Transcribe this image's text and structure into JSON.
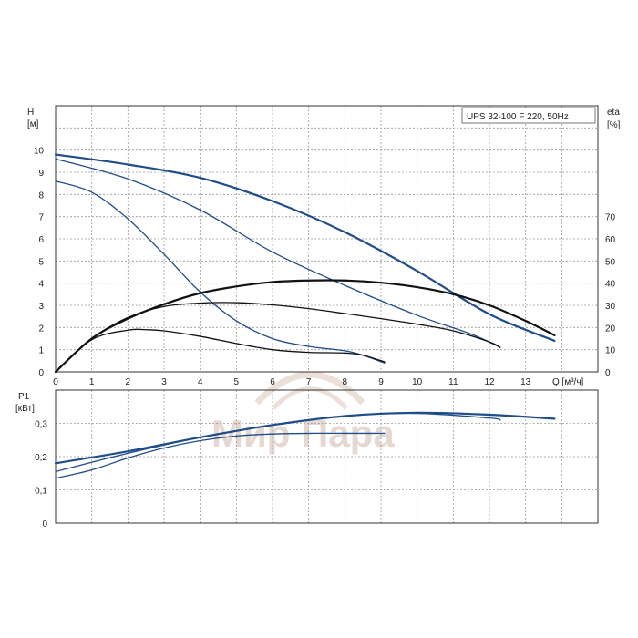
{
  "title_box": "UPS 32-100 F 220, 50Hz",
  "watermark": "Мир Пара",
  "colors": {
    "head": "#1f4d8a",
    "efficiency": "#111111",
    "power": "#1f4d8a",
    "grid": "#9a9a9a"
  },
  "chart_data": [
    {
      "type": "line",
      "title": "UPS 32-100 F 220, 50Hz",
      "xlabel": "Q [м³/ч]",
      "ylabel": "H [м]",
      "ylabel_line1": "H",
      "ylabel_line2": "[м]",
      "y2label": "eta [%]",
      "y2label_line1": "eta",
      "y2label_line2": "[%]",
      "xlim": [
        0,
        15
      ],
      "ylim": [
        0,
        12
      ],
      "y2lim": [
        0,
        120
      ],
      "x_ticks": [
        0,
        1,
        2,
        3,
        4,
        5,
        6,
        7,
        8,
        9,
        10,
        11,
        12,
        13
      ],
      "y_ticks": [
        0,
        1,
        2,
        3,
        4,
        5,
        6,
        7,
        8,
        9,
        10
      ],
      "y2_ticks": [
        0,
        10,
        20,
        30,
        40,
        50,
        60,
        70
      ],
      "grid": true,
      "series": [
        {
          "kind": "head",
          "width": 2.2,
          "x": [
            0,
            2,
            4,
            6,
            8,
            10,
            12,
            13.8
          ],
          "y": [
            9.8,
            9.35,
            8.75,
            7.7,
            6.3,
            4.55,
            2.6,
            1.4
          ]
        },
        {
          "kind": "head",
          "width": 1.3,
          "x": [
            0,
            2,
            4,
            6,
            8,
            10,
            11.5,
            12.3
          ],
          "y": [
            9.6,
            8.7,
            7.3,
            5.4,
            3.9,
            2.55,
            1.7,
            1.1
          ]
        },
        {
          "kind": "head",
          "width": 1.3,
          "x": [
            0,
            1,
            2,
            3,
            4,
            5,
            6,
            7,
            8,
            8.5,
            9.1
          ],
          "y": [
            8.6,
            8.1,
            6.9,
            5.3,
            3.6,
            2.3,
            1.5,
            1.15,
            0.95,
            0.75,
            0.4
          ]
        },
        {
          "kind": "efficiency",
          "width": 2.2,
          "x": [
            0,
            1,
            2,
            3,
            4,
            5,
            6,
            7,
            8,
            9,
            10,
            11,
            12,
            13,
            13.8
          ],
          "y": [
            0,
            15,
            24,
            30.5,
            35.5,
            38.5,
            40.5,
            41.2,
            41.2,
            40.2,
            38.2,
            35.0,
            30.0,
            23.0,
            16.5
          ]
        },
        {
          "kind": "efficiency",
          "width": 1.3,
          "x": [
            0,
            1,
            2,
            3,
            4,
            5,
            6,
            7,
            8,
            9,
            10,
            11,
            12,
            12.3
          ],
          "y": [
            0,
            15,
            24.5,
            29.5,
            31.0,
            31.2,
            30.2,
            28.5,
            26.3,
            24.0,
            21.5,
            18.5,
            13.5,
            11.0
          ]
        },
        {
          "kind": "efficiency",
          "width": 1.3,
          "x": [
            0,
            1,
            2,
            2.5,
            3,
            4,
            5,
            6,
            7,
            8,
            8.5,
            9.1
          ],
          "y": [
            0,
            14.5,
            18.8,
            19.0,
            18.5,
            16.0,
            12.8,
            10.0,
            8.8,
            8.5,
            7.5,
            4.5
          ]
        }
      ]
    },
    {
      "type": "line",
      "ylabel": "P1 [кВт]",
      "ylabel_line1": "P1",
      "ylabel_line2": "[кВт]",
      "xlim": [
        0,
        15
      ],
      "ylim": [
        0,
        0.4
      ],
      "y_ticks": [
        "0",
        "0,1",
        "0,2",
        "0,3"
      ],
      "y_tick_values": [
        0,
        0.1,
        0.2,
        0.3
      ],
      "grid": true,
      "series": [
        {
          "kind": "power",
          "width": 2.2,
          "x": [
            0,
            2,
            4,
            6,
            8,
            10,
            12,
            13.8
          ],
          "y": [
            0.18,
            0.216,
            0.258,
            0.295,
            0.322,
            0.332,
            0.326,
            0.314
          ]
        },
        {
          "kind": "power",
          "width": 1.3,
          "x": [
            0,
            2,
            4,
            6,
            8,
            10,
            12,
            12.3
          ],
          "y": [
            0.155,
            0.21,
            0.258,
            0.295,
            0.322,
            0.33,
            0.316,
            0.31
          ]
        },
        {
          "kind": "power",
          "width": 1.3,
          "x": [
            0,
            1,
            2,
            3,
            4,
            5,
            6,
            7,
            8,
            9.1
          ],
          "y": [
            0.135,
            0.16,
            0.196,
            0.226,
            0.248,
            0.262,
            0.268,
            0.27,
            0.27,
            0.27
          ]
        }
      ]
    }
  ]
}
